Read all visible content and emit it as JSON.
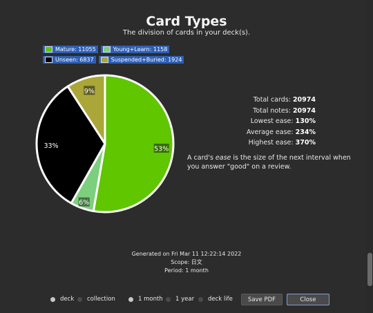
{
  "header": {
    "title": "Card Types",
    "subtitle": "The division of cards in your deck(s)."
  },
  "legend": [
    {
      "label": "Mature: 11055",
      "color": "#5fc600"
    },
    {
      "label": "Young+Learn: 1158",
      "color": "#7ccf7c"
    },
    {
      "label": "Unseen: 6837",
      "color": "#000000"
    },
    {
      "label": "Suspended+Buried: 1924",
      "color": "#aaa638"
    }
  ],
  "chart_data": {
    "type": "pie",
    "slices": [
      {
        "label": "Mature",
        "value": 11055,
        "percent_label": "53%",
        "color": "#5fc600"
      },
      {
        "label": "Young+Learn",
        "value": 1158,
        "percent_label": "6%",
        "color": "#7ccf7c"
      },
      {
        "label": "Unseen",
        "value": 6837,
        "percent_label": "33%",
        "color": "#000000"
      },
      {
        "label": "Suspended+Buried",
        "value": 1924,
        "percent_label": "9%",
        "color": "#aaa638"
      }
    ],
    "legend_position": "top-left"
  },
  "stats": {
    "total_cards_label": "Total cards:",
    "total_cards": "20974",
    "total_notes_label": "Total notes:",
    "total_notes": "20974",
    "lowest_ease_label": "Lowest ease:",
    "lowest_ease": "130%",
    "average_ease_label": "Average ease:",
    "average_ease": "234%",
    "highest_ease_label": "Highest ease:",
    "highest_ease": "370%"
  },
  "note": {
    "before": "A card's ",
    "emphasis": "ease",
    "after": " is the size of the next interval when you answer \"good\" on a review."
  },
  "generated": {
    "line1": "Generated on Fri Mar 11 12:22:14 2022",
    "line2": "Scope: 日文",
    "line3": "Period: 1 month"
  },
  "footer": {
    "deck": "deck",
    "collection": "collection",
    "month": "1 month",
    "year": "1 year",
    "deck_life": "deck life",
    "save_pdf": "Save PDF",
    "close": "Close"
  }
}
